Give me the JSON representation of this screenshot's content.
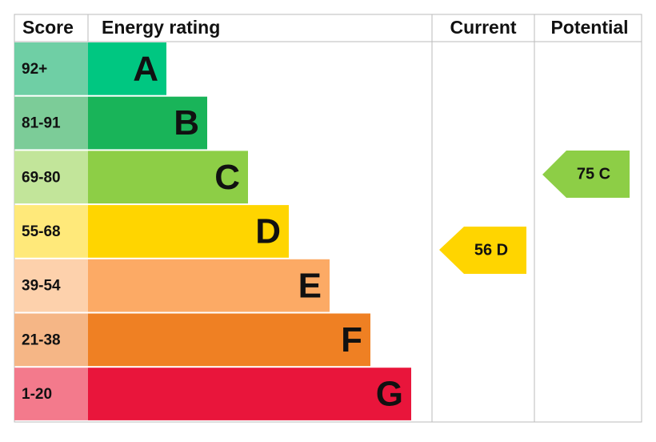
{
  "header": {
    "score": "Score",
    "energy_rating": "Energy rating",
    "current": "Current",
    "potential": "Potential"
  },
  "bands": [
    {
      "score": "92+",
      "letter": "A",
      "color": "#00c781",
      "score_color": "#6fcfa5"
    },
    {
      "score": "81-91",
      "letter": "B",
      "color": "#19b459",
      "score_color": "#7ccc98"
    },
    {
      "score": "69-80",
      "letter": "C",
      "color": "#8dce46",
      "score_color": "#c2e59a"
    },
    {
      "score": "55-68",
      "letter": "D",
      "color": "#ffd500",
      "score_color": "#ffe97a"
    },
    {
      "score": "39-54",
      "letter": "E",
      "color": "#fcaa65",
      "score_color": "#fdd1ac"
    },
    {
      "score": "21-38",
      "letter": "F",
      "color": "#ef8023",
      "score_color": "#f5b686"
    },
    {
      "score": "1-20",
      "letter": "G",
      "color": "#e9153b",
      "score_color": "#f37a8c"
    }
  ],
  "current": {
    "label": "56 D",
    "color": "#ffd500"
  },
  "potential": {
    "label": "75 C",
    "color": "#8dce46"
  }
}
